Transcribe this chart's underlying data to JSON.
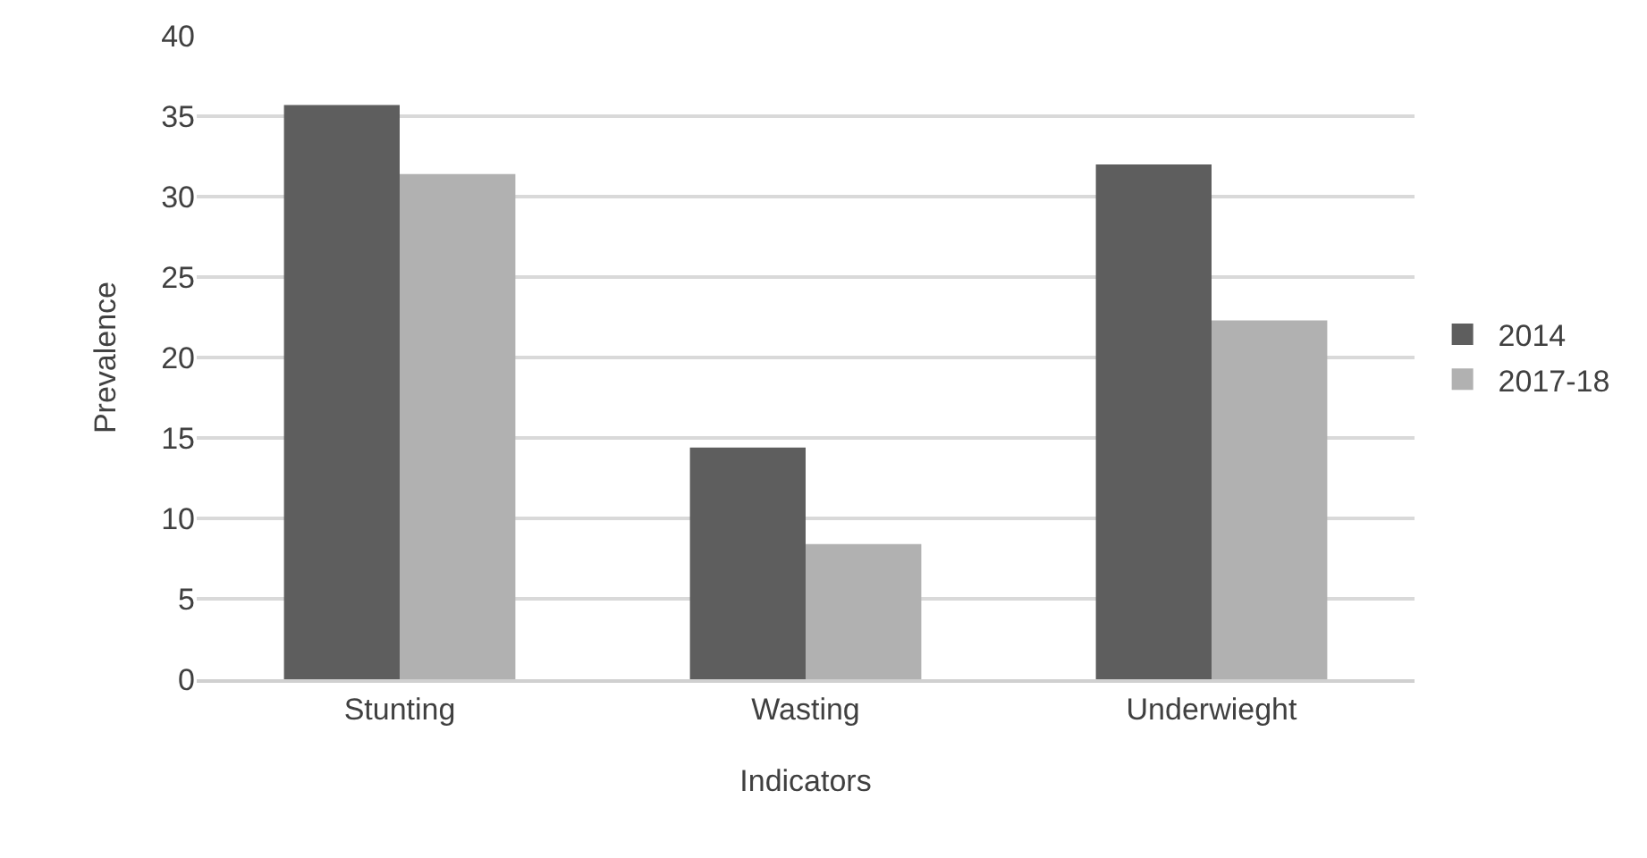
{
  "chart_data": {
    "type": "bar",
    "xlabel": "Indicators",
    "ylabel": "Prevalence",
    "categories": [
      "Stunting",
      "Wasting",
      "Underwieght"
    ],
    "series": [
      {
        "name": "2014",
        "color": "#5e5e5e",
        "values": [
          35.7,
          14.4,
          32.0
        ]
      },
      {
        "name": "2017-18",
        "color": "#b1b1b1",
        "values": [
          31.4,
          8.4,
          22.3
        ]
      }
    ],
    "ylim": [
      0,
      40
    ],
    "yticks": [
      0,
      5,
      10,
      15,
      20,
      25,
      30,
      35,
      40
    ],
    "grid": "y",
    "legend": "right"
  }
}
